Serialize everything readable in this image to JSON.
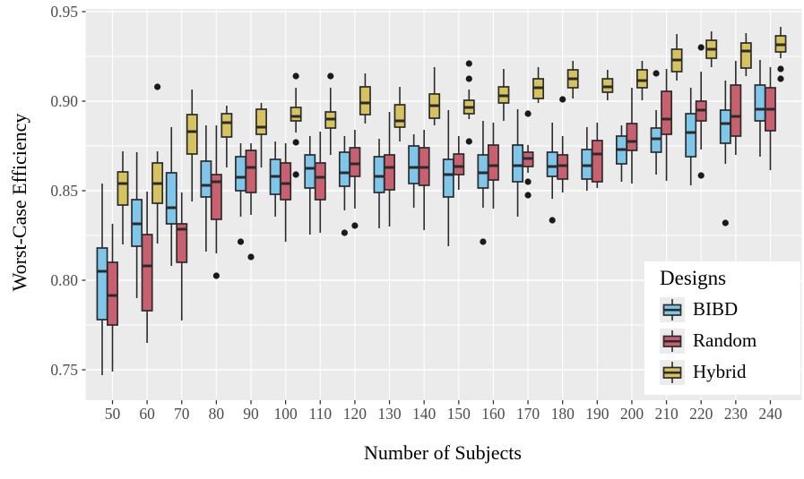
{
  "axes": {
    "x_title": "Number of Subjects",
    "y_title": "Worst-Case Efficiency"
  },
  "legend": {
    "title": "Designs"
  },
  "chart_data": {
    "type": "boxplot",
    "title": "",
    "xlabel": "Number of Subjects",
    "ylabel": "Worst-Case Efficiency",
    "legend_title": "Designs",
    "legend_position": "inside bottom-right",
    "grid": "white major+minor on grey panel",
    "categories": [
      "50",
      "60",
      "70",
      "80",
      "90",
      "100",
      "110",
      "120",
      "130",
      "140",
      "150",
      "160",
      "170",
      "180",
      "190",
      "200",
      "210",
      "220",
      "230",
      "240"
    ],
    "ylim": [
      0.733,
      0.952
    ],
    "yticks": [
      0.75,
      0.8,
      0.85,
      0.9,
      0.95
    ],
    "ytick_labels": [
      "0.75",
      "0.80",
      "0.85",
      "0.90",
      "0.95"
    ],
    "panel_color": "#EBEBEB",
    "outline_color": "#2b2b2b",
    "outlier_color": "#1a1a1a",
    "box_stats_order": [
      "whisker_low",
      "q1",
      "median",
      "q3",
      "whisker_high"
    ],
    "series": [
      {
        "name": "BIBD",
        "color": "#7EC6EA",
        "boxes": [
          [
            0.747,
            0.778,
            0.805,
            0.818,
            0.854
          ],
          [
            0.79,
            0.819,
            0.8315,
            0.845,
            0.8715
          ],
          [
            0.808,
            0.8315,
            0.8405,
            0.86,
            0.8855
          ],
          [
            0.816,
            0.8465,
            0.853,
            0.8665,
            0.8865
          ],
          [
            0.8355,
            0.85,
            0.8575,
            0.869,
            0.8765
          ],
          [
            0.8355,
            0.848,
            0.858,
            0.8675,
            0.8775
          ],
          [
            0.8255,
            0.8515,
            0.8625,
            0.87,
            0.8805
          ],
          [
            0.839,
            0.8525,
            0.86,
            0.8715,
            0.8805
          ],
          [
            0.829,
            0.849,
            0.858,
            0.869,
            0.879
          ],
          [
            0.8405,
            0.854,
            0.863,
            0.875,
            0.8815
          ],
          [
            0.819,
            0.8465,
            0.859,
            0.8675,
            0.895
          ],
          [
            0.8405,
            0.8515,
            0.86,
            0.87,
            0.889
          ],
          [
            0.8355,
            0.855,
            0.864,
            0.8755,
            0.8955
          ],
          [
            0.8455,
            0.858,
            0.8635,
            0.8715,
            0.888
          ],
          [
            0.85,
            0.8565,
            0.864,
            0.873,
            0.8855
          ],
          [
            0.855,
            0.865,
            0.873,
            0.8805,
            0.8865
          ],
          [
            0.859,
            0.8715,
            0.879,
            0.885,
            0.895
          ],
          [
            0.853,
            0.869,
            0.8825,
            0.893,
            0.9075
          ],
          [
            0.865,
            0.8765,
            0.8875,
            0.895,
            0.9115
          ],
          [
            0.869,
            0.889,
            0.8955,
            0.909,
            0.923
          ]
        ],
        "outliers": [
          [
            4,
            0.8215
          ],
          [
            7,
            0.8265
          ],
          [
            11,
            0.8215
          ],
          [
            13,
            0.8335
          ],
          [
            16,
            0.9155
          ],
          [
            18,
            0.832
          ]
        ]
      },
      {
        "name": "Random",
        "color": "#C96070",
        "boxes": [
          [
            0.749,
            0.775,
            0.7915,
            0.81,
            0.8315
          ],
          [
            0.765,
            0.783,
            0.808,
            0.8255,
            0.8495
          ],
          [
            0.7775,
            0.81,
            0.8285,
            0.8315,
            0.849
          ],
          [
            0.815,
            0.834,
            0.855,
            0.859,
            0.8865
          ],
          [
            0.8365,
            0.849,
            0.863,
            0.8725,
            0.8765
          ],
          [
            0.8215,
            0.845,
            0.854,
            0.8655,
            0.8765
          ],
          [
            0.8265,
            0.845,
            0.8575,
            0.8655,
            0.883
          ],
          [
            0.84,
            0.858,
            0.865,
            0.874,
            0.884
          ],
          [
            0.83,
            0.8505,
            0.863,
            0.87,
            0.894
          ],
          [
            0.828,
            0.853,
            0.863,
            0.874,
            0.884
          ],
          [
            0.8505,
            0.859,
            0.8635,
            0.8705,
            0.8805
          ],
          [
            0.84,
            0.856,
            0.864,
            0.8755,
            0.888
          ],
          [
            0.86,
            0.8635,
            0.868,
            0.8715,
            0.8755
          ],
          [
            0.849,
            0.8565,
            0.864,
            0.87,
            0.8805
          ],
          [
            0.8515,
            0.855,
            0.8705,
            0.878,
            0.888
          ],
          [
            0.854,
            0.8725,
            0.8775,
            0.8875,
            0.9075
          ],
          [
            0.8555,
            0.8815,
            0.89,
            0.9055,
            0.918
          ],
          [
            0.873,
            0.889,
            0.895,
            0.9,
            0.9165
          ],
          [
            0.87,
            0.8805,
            0.8915,
            0.909,
            0.9225
          ],
          [
            0.8615,
            0.8835,
            0.8955,
            0.9075,
            0.919
          ]
        ],
        "outliers": [
          [
            3,
            0.8025
          ],
          [
            4,
            0.813
          ],
          [
            7,
            0.8305
          ],
          [
            12,
            0.893
          ],
          [
            12,
            0.855
          ],
          [
            12,
            0.8475
          ],
          [
            13,
            0.901
          ],
          [
            17,
            0.93
          ],
          [
            17,
            0.8585
          ]
        ]
      },
      {
        "name": "Hybrid",
        "color": "#D6C360",
        "boxes": [
          [
            0.82,
            0.842,
            0.854,
            0.8605,
            0.872
          ],
          [
            0.8205,
            0.843,
            0.854,
            0.8655,
            0.872
          ],
          [
            0.844,
            0.8705,
            0.883,
            0.8925,
            0.9065
          ],
          [
            0.863,
            0.88,
            0.888,
            0.893,
            0.8975
          ],
          [
            0.863,
            0.8815,
            0.8855,
            0.8955,
            0.899
          ],
          [
            0.8825,
            0.889,
            0.8915,
            0.8965,
            0.9075
          ],
          [
            0.87,
            0.885,
            0.89,
            0.894,
            0.9075
          ],
          [
            0.8875,
            0.8925,
            0.899,
            0.908,
            0.9155
          ],
          [
            0.8775,
            0.8855,
            0.889,
            0.898,
            0.908
          ],
          [
            0.8865,
            0.8905,
            0.8975,
            0.904,
            0.919
          ],
          [
            0.89,
            0.893,
            0.8965,
            0.9005,
            0.9065
          ],
          [
            0.889,
            0.899,
            0.903,
            0.908,
            0.918
          ],
          [
            0.899,
            0.9015,
            0.9075,
            0.9125,
            0.919
          ],
          [
            0.9015,
            0.9075,
            0.9125,
            0.9175,
            0.9225
          ],
          [
            0.9005,
            0.905,
            0.908,
            0.9125,
            0.9175
          ],
          [
            0.9005,
            0.9075,
            0.9115,
            0.9175,
            0.9225
          ],
          [
            0.9115,
            0.9165,
            0.923,
            0.929,
            0.9375
          ],
          [
            0.919,
            0.924,
            0.929,
            0.934,
            0.939
          ],
          [
            0.914,
            0.9185,
            0.928,
            0.9325,
            0.938
          ],
          [
            0.924,
            0.9275,
            0.9315,
            0.9365,
            0.9415
          ]
        ],
        "outliers": [
          [
            1,
            0.908
          ],
          [
            5,
            0.914
          ],
          [
            5,
            0.877
          ],
          [
            5,
            0.859
          ],
          [
            6,
            0.914
          ],
          [
            10,
            0.921
          ],
          [
            10,
            0.9125
          ],
          [
            10,
            0.8775
          ],
          [
            19,
            0.918
          ],
          [
            19,
            0.9125
          ]
        ]
      }
    ]
  }
}
